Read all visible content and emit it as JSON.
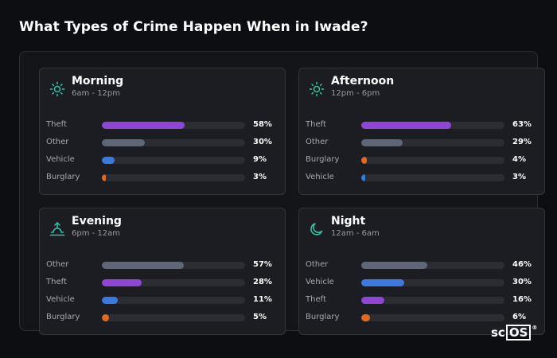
{
  "title": "What Types of Crime Happen When in Iwade?",
  "logo": {
    "part1": "sc",
    "part2": "OS",
    "mark": "®"
  },
  "colors": {
    "Theft": "#8f45d6",
    "Other": "#5e6678",
    "Vehicle": "#3b78e0",
    "Burglary": "#e06a24",
    "icon": "#2ec4a6"
  },
  "cards": [
    {
      "title": "Morning",
      "time": "6am - 12pm",
      "icon": "sun-icon",
      "rows": [
        {
          "label": "Theft",
          "value": 58,
          "pct": "58%"
        },
        {
          "label": "Other",
          "value": 30,
          "pct": "30%"
        },
        {
          "label": "Vehicle",
          "value": 9,
          "pct": "9%"
        },
        {
          "label": "Burglary",
          "value": 3,
          "pct": "3%"
        }
      ]
    },
    {
      "title": "Afternoon",
      "time": "12pm - 6pm",
      "icon": "sun-icon",
      "rows": [
        {
          "label": "Theft",
          "value": 63,
          "pct": "63%"
        },
        {
          "label": "Other",
          "value": 29,
          "pct": "29%"
        },
        {
          "label": "Burglary",
          "value": 4,
          "pct": "4%"
        },
        {
          "label": "Vehicle",
          "value": 3,
          "pct": "3%"
        }
      ]
    },
    {
      "title": "Evening",
      "time": "6pm - 12am",
      "icon": "sunset-icon",
      "rows": [
        {
          "label": "Other",
          "value": 57,
          "pct": "57%"
        },
        {
          "label": "Theft",
          "value": 28,
          "pct": "28%"
        },
        {
          "label": "Vehicle",
          "value": 11,
          "pct": "11%"
        },
        {
          "label": "Burglary",
          "value": 5,
          "pct": "5%"
        }
      ]
    },
    {
      "title": "Night",
      "time": "12am - 6am",
      "icon": "moon-icon",
      "rows": [
        {
          "label": "Other",
          "value": 46,
          "pct": "46%"
        },
        {
          "label": "Vehicle",
          "value": 30,
          "pct": "30%"
        },
        {
          "label": "Theft",
          "value": 16,
          "pct": "16%"
        },
        {
          "label": "Burglary",
          "value": 6,
          "pct": "6%"
        }
      ]
    }
  ]
}
